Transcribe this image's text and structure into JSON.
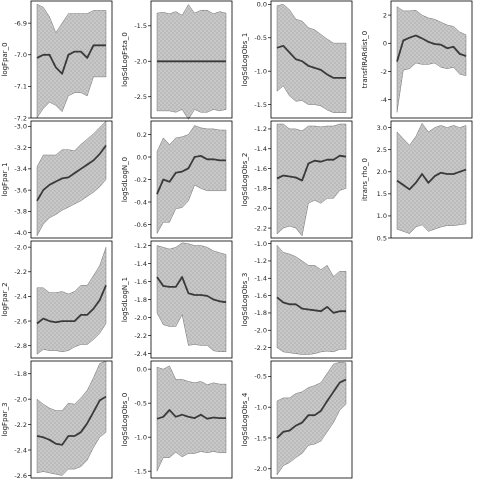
{
  "figure": {
    "band_color": "#c8c8c8",
    "line_color": "#3a3a3a",
    "frame_color": "#000000",
    "background": "#ffffff"
  },
  "chart_data": [
    {
      "type": "line",
      "panel": "logFpar_0",
      "col": 0,
      "row": 0,
      "ylabel": "logFpar_0",
      "ylim": [
        -7.2,
        -6.83
      ],
      "ticks": [
        -6.9,
        -7.0,
        -7.1,
        -7.2
      ],
      "tick_labels": [
        "-6.9",
        "-7.0",
        "-7.1",
        "-7.2"
      ],
      "x": [
        0,
        1,
        2,
        3,
        4,
        5,
        6,
        7,
        8,
        9,
        10,
        11
      ],
      "mean": [
        -7.01,
        -7.0,
        -7.0,
        -7.04,
        -7.06,
        -7.0,
        -6.99,
        -6.99,
        -7.01,
        -6.97,
        -6.97,
        -6.97
      ],
      "lower": [
        -7.2,
        -7.17,
        -7.15,
        -7.16,
        -7.18,
        -7.13,
        -7.12,
        -7.12,
        -7.13,
        -7.07,
        -7.07,
        -7.07
      ],
      "upper": [
        -6.84,
        -6.85,
        -6.88,
        -6.93,
        -6.9,
        -6.87,
        -6.87,
        -6.87,
        -6.87,
        -6.86,
        -6.86,
        -6.86
      ]
    },
    {
      "type": "line",
      "panel": "logFpar_1",
      "col": 0,
      "row": 1,
      "ylabel": "logFpar_1",
      "ylim": [
        -4.05,
        -2.95
      ],
      "ticks": [
        -3.0,
        -3.2,
        -3.4,
        -3.6,
        -3.8,
        -4.0
      ],
      "tick_labels": [
        "-3.0",
        "-3.2",
        "-3.4",
        "-3.6",
        "-3.8",
        "-4.0"
      ],
      "x": [
        0,
        1,
        2,
        3,
        4,
        5,
        6,
        7,
        8,
        9,
        10,
        11
      ],
      "mean": [
        -3.7,
        -3.6,
        -3.55,
        -3.52,
        -3.49,
        -3.48,
        -3.44,
        -3.4,
        -3.36,
        -3.32,
        -3.26,
        -3.18
      ],
      "lower": [
        -4.03,
        -3.92,
        -3.86,
        -3.83,
        -3.79,
        -3.76,
        -3.73,
        -3.7,
        -3.66,
        -3.62,
        -3.57,
        -3.5
      ],
      "upper": [
        -3.38,
        -3.27,
        -3.27,
        -3.27,
        -3.22,
        -3.22,
        -3.23,
        -3.17,
        -3.12,
        -3.07,
        -3.01,
        -2.95
      ]
    },
    {
      "type": "line",
      "panel": "logFpar_2",
      "col": 0,
      "row": 2,
      "ylabel": "logFpar_2",
      "ylim": [
        -2.9,
        -1.95
      ],
      "ticks": [
        -2.0,
        -2.2,
        -2.4,
        -2.6,
        -2.8
      ],
      "tick_labels": [
        "-2.0",
        "-2.2",
        "-2.4",
        "-2.6",
        "-2.8"
      ],
      "x": [
        0,
        1,
        2,
        3,
        4,
        5,
        6,
        7,
        8,
        9,
        10,
        11
      ],
      "mean": [
        -2.62,
        -2.58,
        -2.6,
        -2.61,
        -2.6,
        -2.6,
        -2.6,
        -2.55,
        -2.55,
        -2.5,
        -2.43,
        -2.31
      ],
      "lower": [
        -2.87,
        -2.83,
        -2.84,
        -2.84,
        -2.85,
        -2.84,
        -2.81,
        -2.79,
        -2.79,
        -2.75,
        -2.7,
        -2.62
      ],
      "upper": [
        -2.33,
        -2.33,
        -2.37,
        -2.37,
        -2.36,
        -2.38,
        -2.36,
        -2.31,
        -2.31,
        -2.23,
        -2.15,
        -2.0
      ]
    },
    {
      "type": "line",
      "panel": "logFpar_3",
      "col": 0,
      "row": 3,
      "ylabel": "logFpar_3",
      "ylim": [
        -2.62,
        -1.7
      ],
      "ticks": [
        -1.8,
        -2.0,
        -2.2,
        -2.4,
        -2.6
      ],
      "tick_labels": [
        "-1.8",
        "-2.0",
        "-2.2",
        "-2.4",
        "-2.6"
      ],
      "x": [
        0,
        1,
        2,
        3,
        4,
        5,
        6,
        7,
        8,
        9,
        10,
        11
      ],
      "mean": [
        -2.29,
        -2.3,
        -2.32,
        -2.35,
        -2.36,
        -2.29,
        -2.29,
        -2.26,
        -2.19,
        -2.1,
        -2.01,
        -1.98
      ],
      "lower": [
        -2.58,
        -2.57,
        -2.58,
        -2.59,
        -2.6,
        -2.55,
        -2.55,
        -2.53,
        -2.48,
        -2.38,
        -2.3,
        -2.26
      ],
      "upper": [
        -2.0,
        -2.04,
        -2.07,
        -2.09,
        -2.09,
        -2.03,
        -2.04,
        -1.99,
        -1.93,
        -1.83,
        -1.72,
        -1.7
      ]
    },
    {
      "type": "line",
      "panel": "logSdLogFsta_0",
      "col": 1,
      "row": 0,
      "ylabel": "logSdLogFsta_0",
      "ylim": [
        -2.8,
        -1.15
      ],
      "ticks": [
        -1.5,
        -2.0,
        -2.5
      ],
      "tick_labels": [
        "-1.5",
        "-2.0",
        "-2.5"
      ],
      "x": [
        0,
        1,
        2,
        3,
        4,
        5,
        6,
        7,
        8,
        9,
        10,
        11
      ],
      "mean": [
        -2.0,
        -2.0,
        -2.0,
        -2.0,
        -2.0,
        -2.0,
        -2.0,
        -2.0,
        -2.0,
        -2.0,
        -2.0,
        -2.0
      ],
      "lower": [
        -2.7,
        -2.7,
        -2.7,
        -2.72,
        -2.68,
        -2.82,
        -2.68,
        -2.72,
        -2.72,
        -2.68,
        -2.7,
        -2.68
      ],
      "upper": [
        -1.32,
        -1.31,
        -1.33,
        -1.3,
        -1.35,
        -1.2,
        -1.32,
        -1.28,
        -1.28,
        -1.33,
        -1.3,
        -1.32
      ]
    },
    {
      "type": "line",
      "panel": "logSdLogN_0",
      "col": 1,
      "row": 1,
      "ylabel": "logSdLogN_0",
      "ylim": [
        -0.72,
        0.32
      ],
      "ticks": [
        0.2,
        0.0,
        -0.2,
        -0.4,
        -0.6
      ],
      "tick_labels": [
        "0.2",
        "0.0",
        "-0.2",
        "-0.4",
        "-0.6"
      ],
      "x": [
        0,
        1,
        2,
        3,
        4,
        5,
        6,
        7,
        8,
        9,
        10,
        11
      ],
      "mean": [
        -0.33,
        -0.2,
        -0.22,
        -0.14,
        -0.13,
        -0.1,
        0.0,
        0.01,
        -0.02,
        -0.02,
        -0.03,
        -0.03
      ],
      "lower": [
        -0.68,
        -0.58,
        -0.58,
        -0.46,
        -0.45,
        -0.39,
        -0.25,
        -0.28,
        -0.3,
        -0.3,
        -0.3,
        -0.3
      ],
      "upper": [
        0.05,
        0.17,
        0.11,
        0.17,
        0.18,
        0.2,
        0.28,
        0.26,
        0.25,
        0.25,
        0.24,
        0.24
      ]
    },
    {
      "type": "line",
      "panel": "logSdLogN_1",
      "col": 1,
      "row": 2,
      "ylabel": "logSdLogN_1",
      "ylim": [
        -2.45,
        -1.15
      ],
      "ticks": [
        -1.2,
        -1.4,
        -1.6,
        -1.8,
        -2.0,
        -2.2,
        -2.4
      ],
      "tick_labels": [
        "-1.2",
        "-1.4",
        "-1.6",
        "-1.8",
        "-2.0",
        "-2.2",
        "-2.4"
      ],
      "x": [
        0,
        1,
        2,
        3,
        4,
        5,
        6,
        7,
        8,
        9,
        10,
        11
      ],
      "mean": [
        -1.55,
        -1.65,
        -1.66,
        -1.66,
        -1.55,
        -1.73,
        -1.75,
        -1.75,
        -1.76,
        -1.8,
        -1.82,
        -1.83
      ],
      "lower": [
        -1.95,
        -2.08,
        -2.1,
        -2.1,
        -1.97,
        -2.31,
        -2.3,
        -2.31,
        -2.31,
        -2.37,
        -2.38,
        -2.38
      ],
      "upper": [
        -1.2,
        -1.22,
        -1.24,
        -1.22,
        -1.17,
        -1.18,
        -1.2,
        -1.2,
        -1.22,
        -1.26,
        -1.28,
        -1.3
      ]
    },
    {
      "type": "line",
      "panel": "logSdLogObs_0",
      "col": 1,
      "row": 3,
      "ylabel": "logSdLogObs_0",
      "ylim": [
        -1.6,
        0.12
      ],
      "ticks": [
        0.0,
        -0.5,
        -1.0,
        -1.5
      ],
      "tick_labels": [
        "0.0",
        "-0.5",
        "-1.0",
        "-1.5"
      ],
      "x": [
        0,
        1,
        2,
        3,
        4,
        5,
        6,
        7,
        8,
        9,
        10,
        11
      ],
      "mean": [
        -0.73,
        -0.7,
        -0.6,
        -0.7,
        -0.67,
        -0.7,
        -0.72,
        -0.67,
        -0.73,
        -0.71,
        -0.72,
        -0.72
      ],
      "lower": [
        -1.5,
        -1.3,
        -1.3,
        -1.22,
        -1.29,
        -1.24,
        -1.24,
        -1.21,
        -1.23,
        -1.21,
        -1.23,
        -1.23
      ],
      "upper": [
        0.03,
        0.0,
        0.05,
        -0.15,
        -0.15,
        -0.18,
        -0.2,
        -0.18,
        -0.23,
        -0.2,
        -0.22,
        -0.22
      ]
    },
    {
      "type": "line",
      "panel": "logSdLogObs_1",
      "col": 2,
      "row": 0,
      "ylabel": "logSdLogObs_1",
      "ylim": [
        -1.7,
        0.05
      ],
      "ticks": [
        0.0,
        -0.5,
        -1.0,
        -1.5
      ],
      "tick_labels": [
        "0.0",
        "-0.5",
        "-1.0",
        "-1.5"
      ],
      "x": [
        0,
        1,
        2,
        3,
        4,
        5,
        6,
        7,
        8,
        9,
        10,
        11
      ],
      "mean": [
        -0.65,
        -0.62,
        -0.72,
        -0.82,
        -0.85,
        -0.92,
        -0.95,
        -0.98,
        -1.05,
        -1.1,
        -1.1,
        -1.1
      ],
      "lower": [
        -1.3,
        -1.22,
        -1.37,
        -1.45,
        -1.44,
        -1.5,
        -1.5,
        -1.52,
        -1.58,
        -1.62,
        -1.62,
        -1.62
      ],
      "upper": [
        -0.02,
        0.0,
        -0.08,
        -0.22,
        -0.25,
        -0.35,
        -0.38,
        -0.45,
        -0.52,
        -0.58,
        -0.58,
        -0.58
      ]
    },
    {
      "type": "line",
      "panel": "logSdLogObs_2",
      "col": 2,
      "row": 1,
      "ylabel": "logSdLogObs_2",
      "ylim": [
        -2.3,
        -1.12
      ],
      "ticks": [
        -1.2,
        -1.4,
        -1.6,
        -1.8,
        -2.0,
        -2.2
      ],
      "tick_labels": [
        "-1.2",
        "-1.4",
        "-1.6",
        "-1.8",
        "-2.0",
        "-2.2"
      ],
      "x": [
        0,
        1,
        2,
        3,
        4,
        5,
        6,
        7,
        8,
        9,
        10,
        11
      ],
      "mean": [
        -1.7,
        -1.67,
        -1.68,
        -1.69,
        -1.72,
        -1.55,
        -1.52,
        -1.53,
        -1.51,
        -1.51,
        -1.47,
        -1.48
      ],
      "lower": [
        -2.26,
        -2.2,
        -2.18,
        -2.2,
        -2.28,
        -1.95,
        -1.92,
        -1.95,
        -1.9,
        -1.9,
        -1.82,
        -1.8
      ],
      "upper": [
        -1.15,
        -1.15,
        -1.2,
        -1.2,
        -1.22,
        -1.17,
        -1.17,
        -1.18,
        -1.17,
        -1.17,
        -1.15,
        -1.15
      ]
    },
    {
      "type": "line",
      "panel": "logSdLogObs_3",
      "col": 2,
      "row": 2,
      "ylabel": "logSdLogObs_3",
      "ylim": [
        -2.32,
        -0.97
      ],
      "ticks": [
        -1.0,
        -1.2,
        -1.4,
        -1.6,
        -1.8,
        -2.0,
        -2.2
      ],
      "tick_labels": [
        "-1.0",
        "-1.2",
        "-1.4",
        "-1.6",
        "-1.8",
        "-2.0",
        "-2.2"
      ],
      "x": [
        0,
        1,
        2,
        3,
        4,
        5,
        6,
        7,
        8,
        9,
        10,
        11
      ],
      "mean": [
        -1.62,
        -1.68,
        -1.7,
        -1.7,
        -1.75,
        -1.76,
        -1.77,
        -1.78,
        -1.73,
        -1.8,
        -1.78,
        -1.78
      ],
      "lower": [
        -2.2,
        -2.25,
        -2.26,
        -2.27,
        -2.28,
        -2.28,
        -2.27,
        -2.25,
        -2.24,
        -2.25,
        -2.22,
        -2.22
      ],
      "upper": [
        -1.02,
        -1.1,
        -1.12,
        -1.15,
        -1.2,
        -1.25,
        -1.25,
        -1.3,
        -1.25,
        -1.38,
        -1.32,
        -1.32
      ]
    },
    {
      "type": "line",
      "panel": "logSdLogObs_4",
      "col": 2,
      "row": 3,
      "ylabel": "logSdLogObs_4",
      "ylim": [
        -2.15,
        -0.25
      ],
      "ticks": [
        -0.5,
        -1.0,
        -1.5,
        -2.0
      ],
      "tick_labels": [
        "-0.5",
        "-1.0",
        "-1.5",
        "-2.0"
      ],
      "x": [
        0,
        1,
        2,
        3,
        4,
        5,
        6,
        7,
        8,
        9,
        10,
        11
      ],
      "mean": [
        -1.5,
        -1.4,
        -1.38,
        -1.3,
        -1.25,
        -1.13,
        -1.13,
        -1.06,
        -0.9,
        -0.75,
        -0.6,
        -0.55
      ],
      "lower": [
        -2.1,
        -1.95,
        -1.9,
        -1.82,
        -1.75,
        -1.62,
        -1.6,
        -1.55,
        -1.4,
        -1.25,
        -1.05,
        -0.95
      ],
      "upper": [
        -0.9,
        -0.85,
        -0.85,
        -0.78,
        -0.75,
        -0.68,
        -0.65,
        -0.6,
        -0.45,
        -0.3,
        -0.27,
        -0.28
      ]
    },
    {
      "type": "line",
      "panel": "transfIRARdist_0",
      "col": 3,
      "row": 0,
      "ylabel": "transfIRARdist_0",
      "ylim": [
        -5.3,
        3.0
      ],
      "ticks": [
        2,
        0,
        -2,
        -4
      ],
      "tick_labels": [
        "2",
        "0",
        "-2",
        "-4"
      ],
      "x": [
        0,
        1,
        2,
        3,
        4,
        5,
        6,
        7,
        8,
        9,
        10,
        11
      ],
      "mean": [
        -1.3,
        0.2,
        0.4,
        0.55,
        0.35,
        0.1,
        -0.05,
        -0.1,
        -0.35,
        -0.25,
        -0.75,
        -0.9
      ],
      "lower": [
        -4.9,
        -1.9,
        -1.8,
        -1.4,
        -1.5,
        -1.5,
        -1.4,
        -1.7,
        -1.8,
        -1.7,
        -2.2,
        -2.3
      ],
      "upper": [
        2.6,
        2.3,
        2.3,
        2.35,
        2.0,
        1.8,
        1.7,
        1.5,
        1.3,
        1.2,
        0.8,
        0.6
      ]
    },
    {
      "type": "line",
      "panel": "itrans_rho_0",
      "col": 3,
      "row": 1,
      "ylabel": "itrans_rho_0",
      "ylim": [
        0.5,
        3.15
      ],
      "ticks": [
        3.0,
        2.5,
        2.0,
        1.5,
        1.0,
        0.5
      ],
      "tick_labels": [
        "3.0",
        "2.5",
        "2.0",
        "1.5",
        "1.0",
        "0.5"
      ],
      "x": [
        0,
        1,
        2,
        3,
        4,
        5,
        6,
        7,
        8,
        9,
        10,
        11
      ],
      "mean": [
        1.8,
        1.7,
        1.6,
        1.75,
        1.95,
        1.75,
        1.9,
        1.98,
        1.95,
        1.95,
        2.0,
        2.05
      ],
      "lower": [
        0.7,
        0.65,
        0.6,
        0.75,
        0.8,
        0.65,
        0.7,
        0.75,
        0.78,
        0.78,
        0.8,
        0.82
      ],
      "upper": [
        2.9,
        2.75,
        2.6,
        2.8,
        3.1,
        2.9,
        3.0,
        3.05,
        3.0,
        3.05,
        3.0,
        3.05
      ]
    }
  ]
}
